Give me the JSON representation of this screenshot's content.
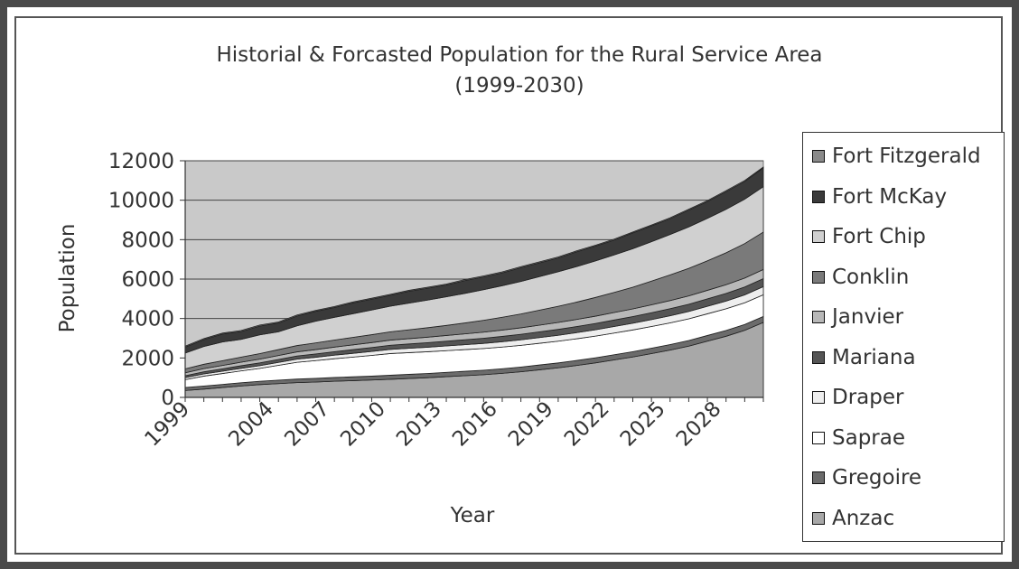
{
  "chart_data": {
    "type": "area",
    "stacked": true,
    "title": "Historial & Forcasted Population for the Rural Service Area",
    "subtitle": "(1999-2030)",
    "xlabel": "Year",
    "ylabel": "Population",
    "ylim": [
      0,
      12000
    ],
    "y_ticks": [
      "0",
      "2000",
      "4000",
      "6000",
      "8000",
      "10000",
      "12000"
    ],
    "x_tick_labels": [
      "1999",
      "2004",
      "2007",
      "2010",
      "2013",
      "2016",
      "2019",
      "2022",
      "2025",
      "2028"
    ],
    "x_range": [
      1999,
      2030
    ],
    "grid": true,
    "legend_position": "right",
    "x": [
      1999,
      2000,
      2001,
      2002,
      2003,
      2004,
      2005,
      2006,
      2007,
      2008,
      2009,
      2010,
      2011,
      2012,
      2013,
      2014,
      2015,
      2016,
      2017,
      2018,
      2019,
      2020,
      2021,
      2022,
      2023,
      2024,
      2025,
      2026,
      2027,
      2028,
      2029,
      2030
    ],
    "series": [
      {
        "name": "Anzac",
        "color": "#a8a8a8",
        "values": [
          350,
          420,
          500,
          580,
          650,
          700,
          750,
          780,
          820,
          850,
          880,
          920,
          960,
          1000,
          1050,
          1100,
          1150,
          1220,
          1300,
          1400,
          1500,
          1620,
          1750,
          1900,
          2050,
          2220,
          2400,
          2600,
          2850,
          3100,
          3400,
          3800
        ]
      },
      {
        "name": "Gregoire",
        "color": "#6b6b6b",
        "values": [
          150,
          160,
          160,
          165,
          170,
          175,
          180,
          185,
          190,
          195,
          200,
          205,
          210,
          215,
          220,
          225,
          230,
          235,
          240,
          245,
          250,
          255,
          260,
          265,
          270,
          275,
          280,
          285,
          290,
          295,
          300,
          305
        ]
      },
      {
        "name": "Saprae",
        "color": "#ffffff",
        "values": [
          400,
          500,
          550,
          600,
          650,
          750,
          850,
          900,
          950,
          1000,
          1050,
          1100,
          1100,
          1100,
          1100,
          1100,
          1100,
          1100,
          1100,
          1100,
          1100,
          1100,
          1100,
          1100,
          1100,
          1100,
          1100,
          1100,
          1100,
          1100,
          1100,
          1100
        ]
      },
      {
        "name": "Draper",
        "color": "#eeeeee",
        "values": [
          100,
          110,
          120,
          130,
          140,
          150,
          160,
          170,
          180,
          190,
          200,
          210,
          220,
          230,
          240,
          250,
          260,
          270,
          280,
          290,
          300,
          310,
          320,
          330,
          340,
          350,
          360,
          370,
          380,
          390,
          400,
          410
        ]
      },
      {
        "name": "Mariana",
        "color": "#555555",
        "values": [
          100,
          110,
          120,
          130,
          140,
          150,
          160,
          170,
          180,
          190,
          200,
          210,
          220,
          230,
          240,
          250,
          260,
          270,
          280,
          290,
          300,
          310,
          320,
          330,
          340,
          350,
          360,
          370,
          380,
          390,
          400,
          410
        ]
      },
      {
        "name": "Janvier",
        "color": "#b8b8b8",
        "values": [
          150,
          160,
          170,
          180,
          190,
          200,
          210,
          220,
          230,
          240,
          250,
          260,
          270,
          280,
          290,
          300,
          310,
          320,
          330,
          340,
          350,
          360,
          370,
          380,
          390,
          400,
          410,
          420,
          430,
          440,
          450,
          460
        ]
      },
      {
        "name": "Conklin",
        "color": "#7a7a7a",
        "values": [
          200,
          220,
          240,
          260,
          280,
          300,
          320,
          340,
          360,
          380,
          400,
          420,
          450,
          480,
          510,
          550,
          600,
          650,
          700,
          760,
          820,
          880,
          950,
          1020,
          1100,
          1200,
          1300,
          1400,
          1500,
          1620,
          1750,
          1900
        ]
      },
      {
        "name": "Fort Chip",
        "color": "#d0d0d0",
        "values": [
          800,
          900,
          950,
          900,
          950,
          900,
          1000,
          1100,
          1150,
          1200,
          1250,
          1300,
          1350,
          1400,
          1450,
          1500,
          1550,
          1600,
          1650,
          1700,
          1750,
          1800,
          1850,
          1900,
          1950,
          2000,
          2050,
          2100,
          2150,
          2200,
          2250,
          2300
        ]
      },
      {
        "name": "Fort McKay",
        "color": "#3a3a3a",
        "values": [
          300,
          350,
          400,
          400,
          450,
          450,
          500,
          500,
          500,
          550,
          550,
          550,
          600,
          600,
          600,
          650,
          650,
          650,
          700,
          700,
          700,
          750,
          750,
          750,
          800,
          800,
          800,
          850,
          850,
          900,
          900,
          950
        ]
      },
      {
        "name": "Fort Fitzgerald",
        "color": "#8a8a8a",
        "values": [
          50,
          50,
          50,
          50,
          50,
          50,
          50,
          50,
          50,
          50,
          50,
          50,
          50,
          50,
          50,
          50,
          50,
          50,
          50,
          50,
          50,
          50,
          50,
          50,
          50,
          50,
          50,
          50,
          50,
          50,
          50,
          50
        ]
      }
    ]
  }
}
